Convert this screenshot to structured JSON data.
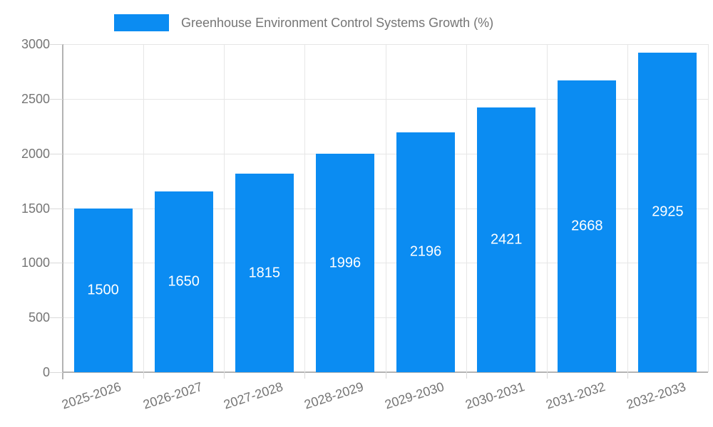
{
  "chart_data": {
    "type": "bar",
    "title": "",
    "legend": {
      "label": "Greenhouse Environment Control Systems Growth (%)",
      "position": "top"
    },
    "categories": [
      "2025-2026",
      "2026-2027",
      "2027-2028",
      "2028-2029",
      "2029-2030",
      "2030-2031",
      "2031-2032",
      "2032-2033"
    ],
    "series": [
      {
        "name": "Greenhouse Environment Control Systems Growth (%)",
        "values": [
          1500,
          1650,
          1815,
          1996,
          2196,
          2421,
          2668,
          2925
        ]
      }
    ],
    "bar_value_labels": [
      "1500",
      "1650",
      "1815",
      "1996",
      "2196",
      "2421",
      "2668",
      "2925"
    ],
    "xlabel": "",
    "ylabel": "",
    "ylim": [
      0,
      3000
    ],
    "yticks": [
      0,
      500,
      1000,
      1500,
      2000,
      2500,
      3000
    ],
    "grid": true,
    "colors": {
      "bar": "#0b8cf2",
      "axis_text": "#757575",
      "grid_line": "#e6e6e6",
      "axis_line": "#b3b3b3",
      "bar_label_text": "#ffffff",
      "background": "#ffffff"
    }
  }
}
